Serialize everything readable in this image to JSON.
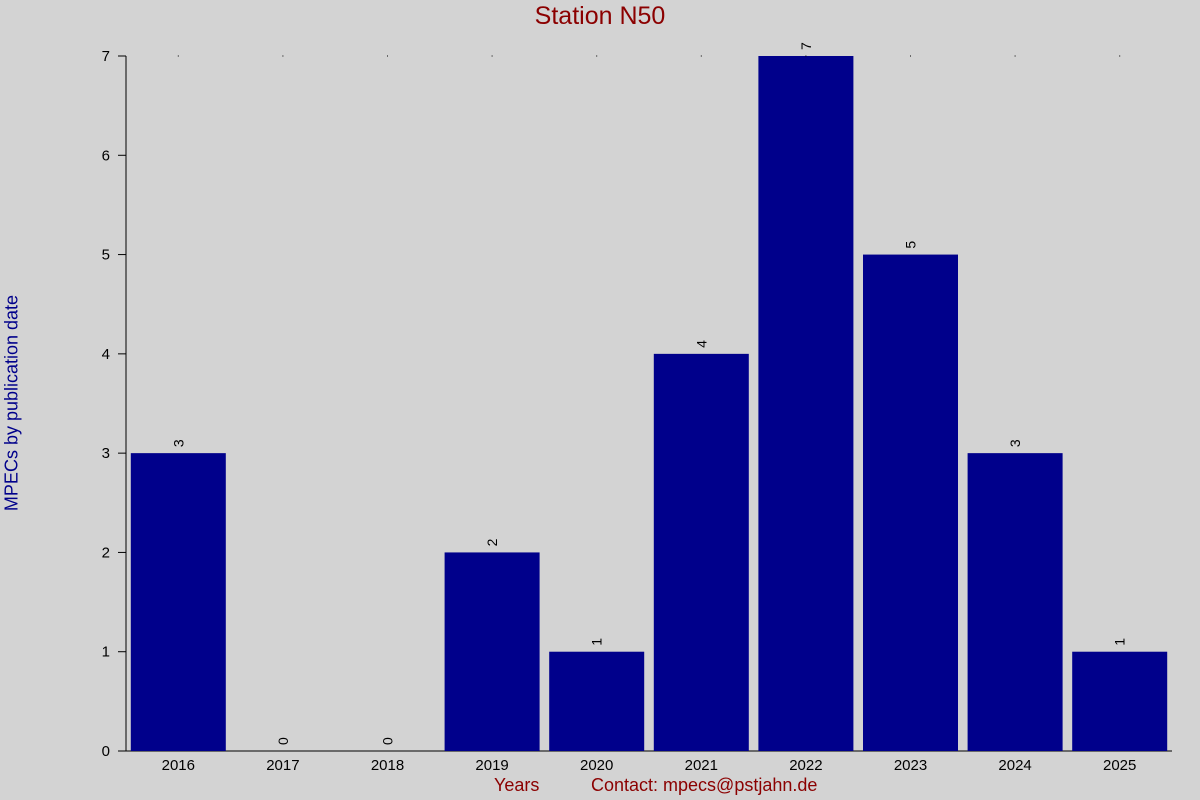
{
  "chart_data": {
    "type": "bar",
    "title": "Station N50",
    "xlabel": "Years",
    "ylabel": "MPECs by publication date",
    "categories": [
      "2016",
      "2017",
      "2018",
      "2019",
      "2020",
      "2021",
      "2022",
      "2023",
      "2024",
      "2025"
    ],
    "values": [
      3,
      0,
      0,
      2,
      1,
      4,
      7,
      5,
      3,
      1
    ],
    "ylim": [
      0,
      7
    ],
    "yticks": [
      0,
      1,
      2,
      3,
      4,
      5,
      6,
      7
    ],
    "bar_color": "#00008b",
    "grid": false,
    "data_labels": true,
    "footer_text": "Contact: mpecs@pstjahn.de"
  },
  "colors": {
    "background": "#d3d3d3",
    "title": "#8b0000",
    "ylabel": "#00008b",
    "bar": "#00008b",
    "axis": "#000000"
  }
}
